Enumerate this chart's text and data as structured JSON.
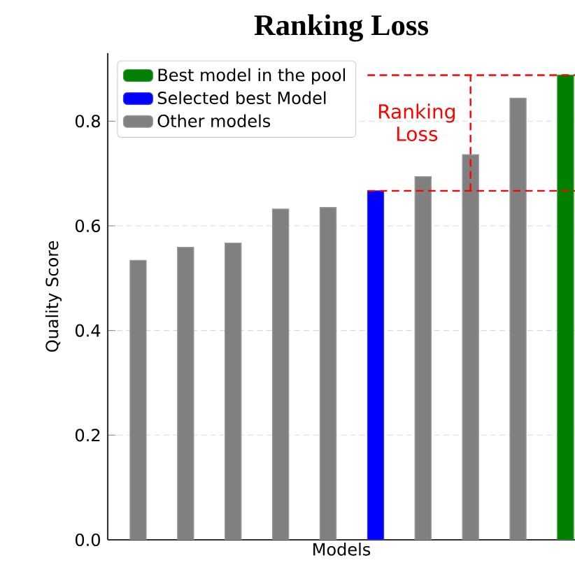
{
  "chart_data": {
    "type": "bar",
    "title": "Ranking Loss",
    "xlabel": "Models",
    "ylabel": "Quality Score",
    "categories": [
      null,
      null,
      null,
      null,
      null,
      null,
      null,
      null,
      null,
      null
    ],
    "series": [
      {
        "name": "Best model in the pool",
        "color": "#008000",
        "values": [
          null,
          null,
          null,
          null,
          null,
          null,
          null,
          null,
          null,
          0.888
        ]
      },
      {
        "name": "Selected best Model",
        "color": "#0000ff",
        "values": [
          null,
          null,
          null,
          null,
          null,
          0.667,
          null,
          null,
          null,
          null
        ]
      },
      {
        "name": "Other models",
        "color": "#808080",
        "values": [
          0.534,
          0.559,
          0.567,
          0.632,
          0.635,
          null,
          0.694,
          0.736,
          0.844,
          null
        ]
      }
    ],
    "ylim": [
      0,
      0.93
    ],
    "yticks": [
      {
        "value": 0,
        "label": "0.0"
      },
      {
        "value": 0.2,
        "label": "0.2"
      },
      {
        "value": 0.4,
        "label": "0.4"
      },
      {
        "value": 0.6,
        "label": "0.6"
      },
      {
        "value": 0.8,
        "label": "0.8"
      }
    ],
    "tick_labels": "y",
    "grid": "y",
    "legend": "top left",
    "ref_lines": [
      {
        "axis": "y",
        "value": 0.888,
        "color": "#ff0000",
        "line_style": "dashed"
      },
      {
        "axis": "y",
        "value": 0.667,
        "color": "#ff0000",
        "line_style": "dashed"
      }
    ],
    "annotations": [
      "Ranking Loss"
    ]
  }
}
